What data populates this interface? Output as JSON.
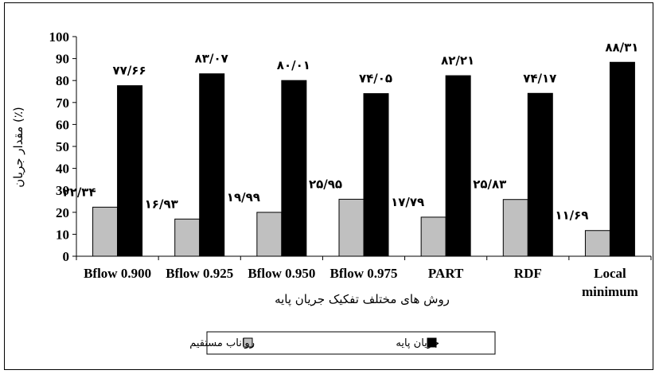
{
  "chart_data": {
    "type": "bar",
    "categories": [
      "Bflow 0.900",
      "Bflow 0.925",
      "Bflow 0.950",
      "Bflow 0.975",
      "PART",
      "RDF",
      "Local minimum"
    ],
    "series": [
      {
        "name": "رواناب مستقیم",
        "values": [
          22.34,
          16.93,
          19.99,
          25.95,
          17.79,
          25.83,
          11.69
        ],
        "labels": [
          "۲۲/۳۴",
          "۱۶/۹۳",
          "۱۹/۹۹",
          "۲۵/۹۵",
          "۱۷/۷۹",
          "۲۵/۸۳",
          "۱۱/۶۹"
        ]
      },
      {
        "name": "جریان پایه",
        "values": [
          77.66,
          83.07,
          80.01,
          74.05,
          82.21,
          74.17,
          88.31
        ],
        "labels": [
          "۷۷/۶۶",
          "۸۳/۰۷",
          "۸۰/۰۱",
          "۷۴/۰۵",
          "۸۲/۲۱",
          "۷۴/۱۷",
          "۸۸/۳۱"
        ]
      }
    ],
    "xlabel": "روش های مختلف تفکیک جریان پایه",
    "ylabel": "مقدار جریان (٪)",
    "ylim": [
      0,
      100
    ],
    "yticks": [
      0,
      10,
      20,
      30,
      40,
      50,
      60,
      70,
      80,
      90,
      100
    ],
    "colors": [
      "#c0c0c0",
      "#000000"
    ],
    "grid": false,
    "legend_position": "bottom"
  }
}
